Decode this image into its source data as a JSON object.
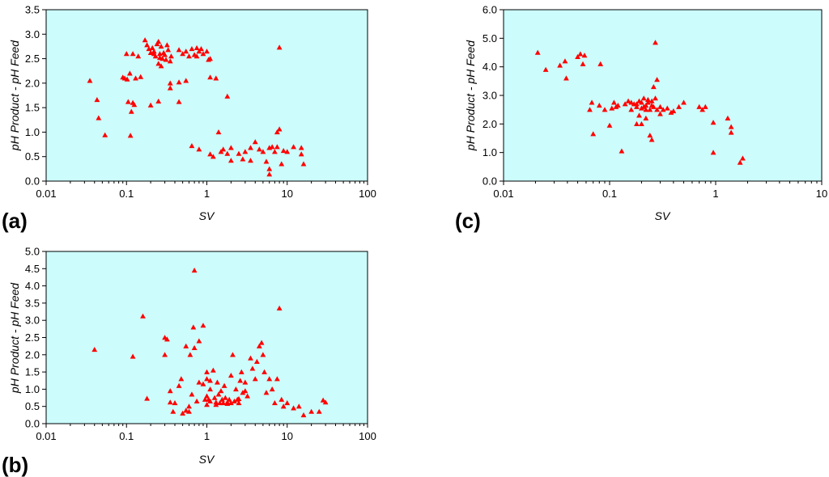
{
  "chart_data": [
    {
      "type": "scatter",
      "panel_label": "(a)",
      "xlabel": "SV",
      "ylabel": "pH Product - pH Feed",
      "xscale": "log",
      "xlim": [
        0.01,
        100
      ],
      "ylim": [
        0,
        3.5
      ],
      "xticks": [
        "0.01",
        "0.1",
        "1",
        "10",
        "100"
      ],
      "yticks": [
        "0.0",
        "0.5",
        "1.0",
        "1.5",
        "2.0",
        "2.5",
        "3.0",
        "3.5"
      ],
      "background": "#ccfcfc",
      "marker_color": "#ff0000",
      "points": [
        [
          0.035,
          2.05
        ],
        [
          0.043,
          1.66
        ],
        [
          0.045,
          1.29
        ],
        [
          0.054,
          0.94
        ],
        [
          0.09,
          2.12
        ],
        [
          0.095,
          2.1
        ],
        [
          0.1,
          2.6
        ],
        [
          0.102,
          2.08
        ],
        [
          0.105,
          1.62
        ],
        [
          0.11,
          2.2
        ],
        [
          0.112,
          0.93
        ],
        [
          0.115,
          1.42
        ],
        [
          0.12,
          2.6
        ],
        [
          0.125,
          1.56
        ],
        [
          0.13,
          2.1
        ],
        [
          0.14,
          2.55
        ],
        [
          0.15,
          2.13
        ],
        [
          0.17,
          2.88
        ],
        [
          0.18,
          2.78
        ],
        [
          0.19,
          2.7
        ],
        [
          0.2,
          2.62
        ],
        [
          0.21,
          2.72
        ],
        [
          0.22,
          2.65
        ],
        [
          0.23,
          2.55
        ],
        [
          0.24,
          2.8
        ],
        [
          0.25,
          2.4
        ],
        [
          0.26,
          2.6
        ],
        [
          0.27,
          2.75
        ],
        [
          0.28,
          2.5
        ],
        [
          0.3,
          2.58
        ],
        [
          0.32,
          2.78
        ],
        [
          0.35,
          2.45
        ],
        [
          0.27,
          2.35
        ],
        [
          0.22,
          2.6
        ],
        [
          0.25,
          2.85
        ],
        [
          0.29,
          2.62
        ],
        [
          0.31,
          2.48
        ],
        [
          0.33,
          2.68
        ],
        [
          0.36,
          2.55
        ],
        [
          0.26,
          2.52
        ],
        [
          0.45,
          2.68
        ],
        [
          0.5,
          2.6
        ],
        [
          0.55,
          2.65
        ],
        [
          0.6,
          2.55
        ],
        [
          0.65,
          2.7
        ],
        [
          0.7,
          2.58
        ],
        [
          0.75,
          2.72
        ],
        [
          0.8,
          2.65
        ],
        [
          0.85,
          2.7
        ],
        [
          0.9,
          2.6
        ],
        [
          1.0,
          2.65
        ],
        [
          1.05,
          2.48
        ],
        [
          1.1,
          2.5
        ],
        [
          0.2,
          1.55
        ],
        [
          0.25,
          1.63
        ],
        [
          0.35,
          1.9
        ],
        [
          0.35,
          2.0
        ],
        [
          0.45,
          2.02
        ],
        [
          0.45,
          1.62
        ],
        [
          0.55,
          2.05
        ],
        [
          1.1,
          2.12
        ],
        [
          1.3,
          2.1
        ],
        [
          0.12,
          1.6
        ],
        [
          0.65,
          0.72
        ],
        [
          0.8,
          0.65
        ],
        [
          1.1,
          0.55
        ],
        [
          1.2,
          0.5
        ],
        [
          1.4,
          1.0
        ],
        [
          1.5,
          0.6
        ],
        [
          1.6,
          0.65
        ],
        [
          1.8,
          0.56
        ],
        [
          2.0,
          0.68
        ],
        [
          2.0,
          0.42
        ],
        [
          2.5,
          0.56
        ],
        [
          2.8,
          0.45
        ],
        [
          3.0,
          0.6
        ],
        [
          3.5,
          0.68
        ],
        [
          3.5,
          0.42
        ],
        [
          4.0,
          0.8
        ],
        [
          4.5,
          0.65
        ],
        [
          5.0,
          0.6
        ],
        [
          5.5,
          0.4
        ],
        [
          6.0,
          0.68
        ],
        [
          6.0,
          0.25
        ],
        [
          6.0,
          0.14
        ],
        [
          6.5,
          0.7
        ],
        [
          7.0,
          0.6
        ],
        [
          7.5,
          0.7
        ],
        [
          8.0,
          2.73
        ],
        [
          8.0,
          1.06
        ],
        [
          7.5,
          1.0
        ],
        [
          8.5,
          0.35
        ],
        [
          9.0,
          0.62
        ],
        [
          10.0,
          0.6
        ],
        [
          12.0,
          0.7
        ],
        [
          15.0,
          0.68
        ],
        [
          15.0,
          0.55
        ],
        [
          16.0,
          0.35
        ],
        [
          1.8,
          1.73
        ],
        [
          0.75,
          2.55
        ]
      ]
    },
    {
      "type": "scatter",
      "panel_label": "(b)",
      "xlabel": "SV",
      "ylabel": "pH Product - pH Feed",
      "xscale": "log",
      "xlim": [
        0.01,
        100
      ],
      "ylim": [
        0,
        5
      ],
      "xticks": [
        "0.01",
        "0.1",
        "1",
        "10",
        "100"
      ],
      "yticks": [
        "0.0",
        "0.5",
        "1.0",
        "1.5",
        "2.0",
        "2.5",
        "3.0",
        "3.5",
        "4.0",
        "4.5",
        "5.0"
      ],
      "background": "#ccfcfc",
      "marker_color": "#ff0000",
      "points": [
        [
          0.04,
          2.15
        ],
        [
          0.12,
          1.95
        ],
        [
          0.16,
          3.12
        ],
        [
          0.18,
          0.73
        ],
        [
          0.3,
          2.5
        ],
        [
          0.3,
          2.0
        ],
        [
          0.32,
          2.45
        ],
        [
          0.35,
          0.95
        ],
        [
          0.35,
          0.62
        ],
        [
          0.38,
          0.35
        ],
        [
          0.45,
          1.1
        ],
        [
          0.48,
          1.3
        ],
        [
          0.5,
          0.3
        ],
        [
          0.55,
          0.38
        ],
        [
          0.55,
          2.25
        ],
        [
          0.6,
          0.5
        ],
        [
          0.6,
          0.35
        ],
        [
          0.62,
          2.0
        ],
        [
          0.65,
          0.85
        ],
        [
          0.68,
          2.8
        ],
        [
          0.7,
          2.2
        ],
        [
          0.7,
          4.45
        ],
        [
          0.75,
          0.65
        ],
        [
          0.8,
          1.2
        ],
        [
          0.8,
          2.4
        ],
        [
          0.9,
          2.85
        ],
        [
          0.95,
          0.7
        ],
        [
          1.0,
          1.3
        ],
        [
          1.0,
          1.5
        ],
        [
          1.0,
          0.8
        ],
        [
          1.05,
          0.7
        ],
        [
          1.1,
          0.65
        ],
        [
          1.1,
          1.0
        ],
        [
          1.2,
          1.55
        ],
        [
          1.25,
          0.75
        ],
        [
          1.3,
          0.55
        ],
        [
          1.35,
          1.2
        ],
        [
          1.4,
          0.85
        ],
        [
          1.45,
          0.6
        ],
        [
          1.5,
          0.95
        ],
        [
          1.55,
          0.7
        ],
        [
          1.6,
          0.6
        ],
        [
          1.65,
          1.1
        ],
        [
          1.7,
          0.75
        ],
        [
          1.8,
          0.62
        ],
        [
          1.9,
          0.7
        ],
        [
          2.0,
          0.6
        ],
        [
          2.0,
          1.4
        ],
        [
          2.1,
          2.0
        ],
        [
          2.2,
          0.65
        ],
        [
          2.3,
          1.0
        ],
        [
          2.4,
          0.7
        ],
        [
          2.5,
          0.6
        ],
        [
          2.6,
          1.25
        ],
        [
          2.7,
          1.5
        ],
        [
          2.8,
          0.9
        ],
        [
          3.0,
          1.2
        ],
        [
          3.2,
          0.8
        ],
        [
          3.5,
          1.9
        ],
        [
          3.7,
          1.6
        ],
        [
          4.0,
          1.3
        ],
        [
          4.2,
          1.8
        ],
        [
          4.5,
          2.25
        ],
        [
          4.8,
          2.35
        ],
        [
          5.0,
          2.0
        ],
        [
          5.2,
          1.5
        ],
        [
          5.5,
          0.9
        ],
        [
          6.0,
          1.3
        ],
        [
          6.5,
          1.0
        ],
        [
          7.0,
          0.6
        ],
        [
          7.5,
          1.3
        ],
        [
          8.0,
          3.35
        ],
        [
          8.5,
          0.7
        ],
        [
          9.0,
          0.5
        ],
        [
          10.0,
          0.6
        ],
        [
          12.0,
          0.45
        ],
        [
          14.0,
          0.5
        ],
        [
          16.0,
          0.25
        ],
        [
          20.0,
          0.35
        ],
        [
          25.0,
          0.35
        ],
        [
          28.0,
          0.68
        ],
        [
          30.0,
          0.62
        ],
        [
          1.0,
          0.55
        ],
        [
          1.3,
          0.62
        ],
        [
          1.8,
          0.58
        ],
        [
          2.5,
          0.72
        ],
        [
          3.0,
          0.95
        ],
        [
          1.1,
          1.25
        ],
        [
          0.4,
          0.6
        ],
        [
          0.9,
          1.15
        ]
      ]
    },
    {
      "type": "scatter",
      "panel_label": "(c)",
      "xlabel": "SV",
      "ylabel": "pH Product - pH Feed",
      "xscale": "log",
      "xlim": [
        0.01,
        10
      ],
      "ylim": [
        0,
        6
      ],
      "xticks": [
        "0.01",
        "0.1",
        "1",
        "10"
      ],
      "yticks": [
        "0.0",
        "1.0",
        "2.0",
        "3.0",
        "4.0",
        "5.0",
        "6.0"
      ],
      "background": "#ccfcfc",
      "marker_color": "#ff0000",
      "points": [
        [
          0.021,
          4.5
        ],
        [
          0.025,
          3.9
        ],
        [
          0.034,
          4.05
        ],
        [
          0.038,
          4.2
        ],
        [
          0.039,
          3.6
        ],
        [
          0.05,
          4.35
        ],
        [
          0.053,
          4.45
        ],
        [
          0.056,
          4.1
        ],
        [
          0.058,
          4.4
        ],
        [
          0.065,
          2.5
        ],
        [
          0.068,
          2.75
        ],
        [
          0.07,
          1.65
        ],
        [
          0.08,
          2.65
        ],
        [
          0.082,
          4.1
        ],
        [
          0.09,
          2.5
        ],
        [
          0.1,
          1.95
        ],
        [
          0.105,
          2.55
        ],
        [
          0.11,
          2.75
        ],
        [
          0.115,
          2.6
        ],
        [
          0.12,
          2.65
        ],
        [
          0.13,
          1.05
        ],
        [
          0.14,
          2.7
        ],
        [
          0.15,
          2.8
        ],
        [
          0.16,
          2.5
        ],
        [
          0.17,
          2.7
        ],
        [
          0.18,
          2.6
        ],
        [
          0.19,
          2.8
        ],
        [
          0.2,
          2.55
        ],
        [
          0.21,
          2.9
        ],
        [
          0.22,
          2.65
        ],
        [
          0.23,
          2.75
        ],
        [
          0.24,
          2.5
        ],
        [
          0.25,
          2.8
        ],
        [
          0.26,
          2.6
        ],
        [
          0.27,
          2.9
        ],
        [
          0.28,
          2.5
        ],
        [
          0.2,
          2.0
        ],
        [
          0.22,
          2.2
        ],
        [
          0.24,
          1.6
        ],
        [
          0.25,
          1.45
        ],
        [
          0.26,
          3.3
        ],
        [
          0.27,
          4.85
        ],
        [
          0.28,
          3.55
        ],
        [
          0.18,
          2.0
        ],
        [
          0.19,
          2.3
        ],
        [
          0.3,
          2.6
        ],
        [
          0.32,
          2.5
        ],
        [
          0.35,
          2.55
        ],
        [
          0.4,
          2.45
        ],
        [
          0.45,
          2.6
        ],
        [
          0.5,
          2.75
        ],
        [
          0.18,
          2.7
        ],
        [
          0.21,
          2.6
        ],
        [
          0.23,
          2.85
        ],
        [
          0.2,
          2.75
        ],
        [
          0.22,
          2.5
        ],
        [
          0.25,
          2.65
        ],
        [
          0.16,
          2.75
        ],
        [
          0.7,
          2.6
        ],
        [
          0.75,
          2.5
        ],
        [
          0.8,
          2.6
        ],
        [
          0.95,
          1.0
        ],
        [
          0.95,
          2.05
        ],
        [
          1.3,
          2.2
        ],
        [
          1.4,
          1.9
        ],
        [
          1.4,
          1.7
        ],
        [
          1.7,
          0.65
        ],
        [
          1.8,
          0.8
        ],
        [
          0.3,
          2.35
        ],
        [
          0.38,
          2.4
        ]
      ]
    }
  ]
}
